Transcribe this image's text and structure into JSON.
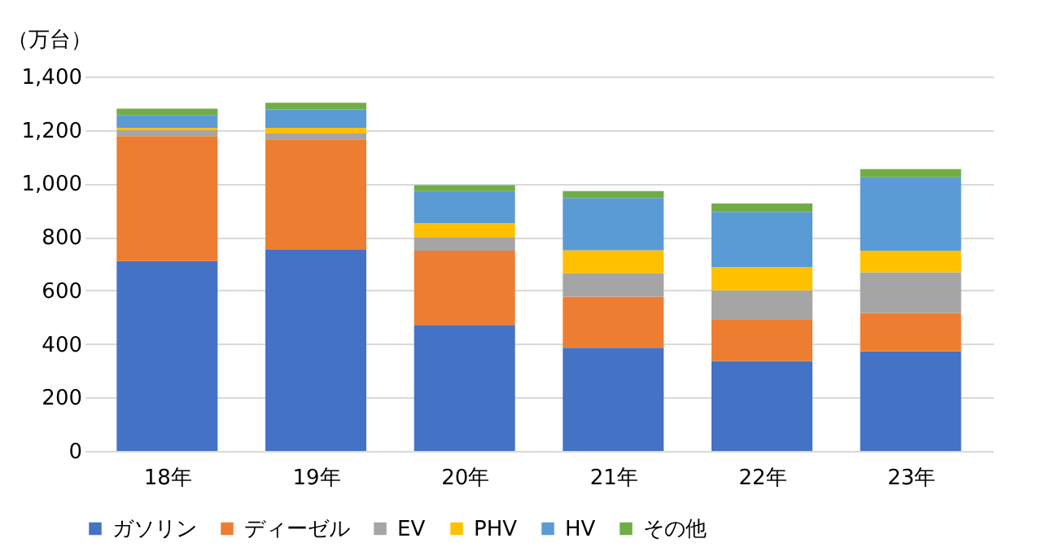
{
  "chart_data": {
    "type": "bar",
    "stacked": true,
    "ylabel": "（万台）",
    "categories": [
      "18年",
      "19年",
      "20年",
      "21年",
      "22年",
      "23年"
    ],
    "series": [
      {
        "name": "ガソリン",
        "color": "#4472c4",
        "values": [
          710,
          754,
          471,
          386,
          336,
          372
        ]
      },
      {
        "name": "ディーゼル",
        "color": "#ed7d31",
        "values": [
          467,
          411,
          278,
          191,
          154,
          144
        ]
      },
      {
        "name": "EV",
        "color": "#a5a5a5",
        "values": [
          22,
          22,
          51,
          88,
          110,
          152
        ]
      },
      {
        "name": "PHV",
        "color": "#ffc000",
        "values": [
          9,
          21,
          52,
          85,
          87,
          81
        ]
      },
      {
        "name": "HV",
        "color": "#5b9bd5",
        "values": [
          48,
          69,
          120,
          196,
          207,
          274
        ]
      },
      {
        "name": "その他",
        "color": "#70ad47",
        "values": [
          24,
          25,
          22,
          26,
          31,
          31
        ]
      }
    ],
    "ylim": [
      0,
      1400
    ],
    "yticks": [
      0,
      200,
      400,
      600,
      800,
      {
        "value": 1000,
        "label": "1,000"
      },
      {
        "value": 1200,
        "label": "1,200"
      },
      {
        "value": 1400,
        "label": "1,400"
      }
    ],
    "grid": "y",
    "legend": "bottom"
  }
}
